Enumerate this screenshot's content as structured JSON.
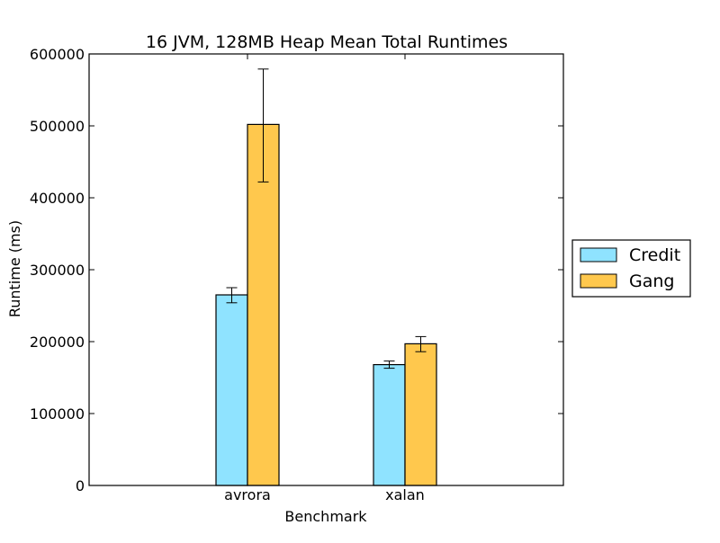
{
  "chart_data": {
    "type": "bar",
    "title": "16 JVM, 128MB Heap Mean Total Runtimes",
    "xlabel": "Benchmark",
    "ylabel": "Runtime (ms)",
    "categories": [
      "avrora",
      "xalan"
    ],
    "ylim": [
      0,
      600000
    ],
    "yticks": [
      0,
      100000,
      200000,
      300000,
      400000,
      500000,
      600000
    ],
    "ytick_labels": [
      "0",
      "100000",
      "200000",
      "300000",
      "400000",
      "500000",
      "600000"
    ],
    "grid": false,
    "legend_position": "right, outside plot",
    "series": [
      {
        "name": "Credit",
        "color": "#8fe3ff",
        "values": [
          265000,
          168000
        ],
        "error": [
          [
            254000,
            275000
          ],
          [
            163000,
            173000
          ]
        ]
      },
      {
        "name": "Gang",
        "color": "#ffc84d",
        "values": [
          502000,
          197000
        ],
        "error": [
          [
            422000,
            579000
          ],
          [
            186000,
            207000
          ]
        ]
      }
    ]
  }
}
